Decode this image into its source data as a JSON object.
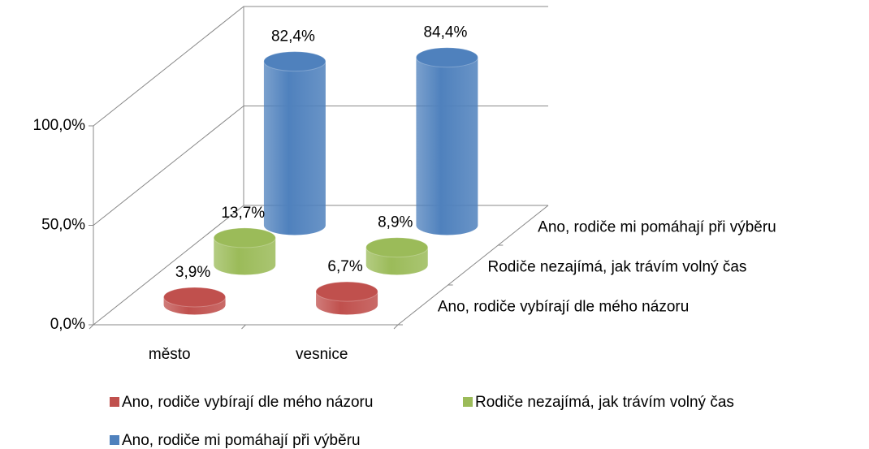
{
  "chart_data": {
    "type": "bar3d",
    "categories": [
      "město",
      "vesnice"
    ],
    "series": [
      {
        "name": "Ano, rodiče vybírají dle mého názoru",
        "color": "#c0504d",
        "values": [
          3.9,
          6.7
        ],
        "value_labels": [
          "3,9%",
          "6,7%"
        ]
      },
      {
        "name": "Rodiče nezajímá, jak trávím volný čas",
        "color": "#9bbb59",
        "values": [
          13.7,
          8.9
        ],
        "value_labels": [
          "13,7%",
          "8,9%"
        ]
      },
      {
        "name": "Ano, rodiče mi pomáhají při výběru",
        "color": "#4f81bd",
        "values": [
          82.4,
          84.4
        ],
        "value_labels": [
          "82,4%",
          "84,4%"
        ]
      }
    ],
    "ylim": [
      0,
      100
    ],
    "yticks": [
      {
        "value": 0,
        "label": "0,0%"
      },
      {
        "value": 50,
        "label": "50,0%"
      },
      {
        "value": 100,
        "label": "100,0%"
      }
    ],
    "grid": true,
    "legend": "bottom"
  }
}
